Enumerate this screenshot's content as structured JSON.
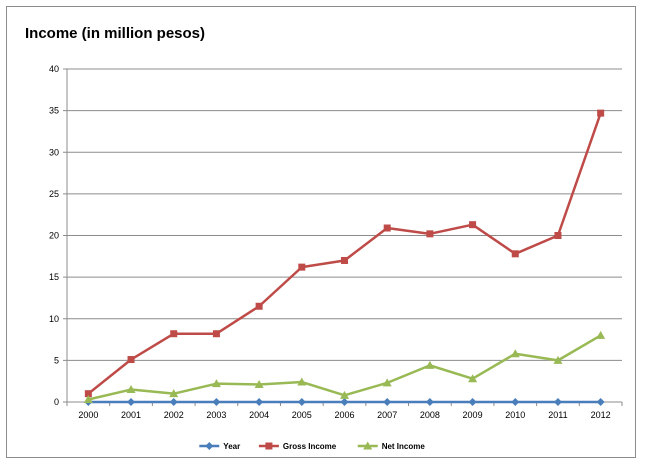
{
  "chart_data": {
    "type": "line",
    "title": "Income (in million pesos)",
    "xlabel": "",
    "ylabel": "",
    "categories": [
      "2000",
      "2001",
      "2002",
      "2003",
      "2004",
      "2005",
      "2006",
      "2007",
      "2008",
      "2009",
      "2010",
      "2011",
      "2012"
    ],
    "ylim": [
      0,
      40
    ],
    "yticks": [
      0,
      5,
      10,
      15,
      20,
      25,
      30,
      35,
      40
    ],
    "grid": true,
    "legend_position": "bottom",
    "series": [
      {
        "name": "Year",
        "color": "#4a7ebb",
        "marker": "diamond",
        "values": [
          0,
          0,
          0,
          0,
          0,
          0,
          0,
          0,
          0,
          0,
          0,
          0,
          0
        ]
      },
      {
        "name": "Gross Income",
        "color": "#be4b48",
        "marker": "square",
        "values": [
          1.0,
          5.1,
          8.2,
          8.2,
          11.5,
          16.2,
          17.0,
          20.9,
          20.2,
          21.3,
          17.8,
          20.0,
          34.7
        ]
      },
      {
        "name": "Net Income",
        "color": "#98b954",
        "marker": "triangle",
        "values": [
          0.3,
          1.5,
          1.0,
          2.2,
          2.1,
          2.4,
          0.8,
          2.3,
          4.4,
          2.8,
          5.8,
          5.0,
          8.0
        ]
      }
    ]
  }
}
